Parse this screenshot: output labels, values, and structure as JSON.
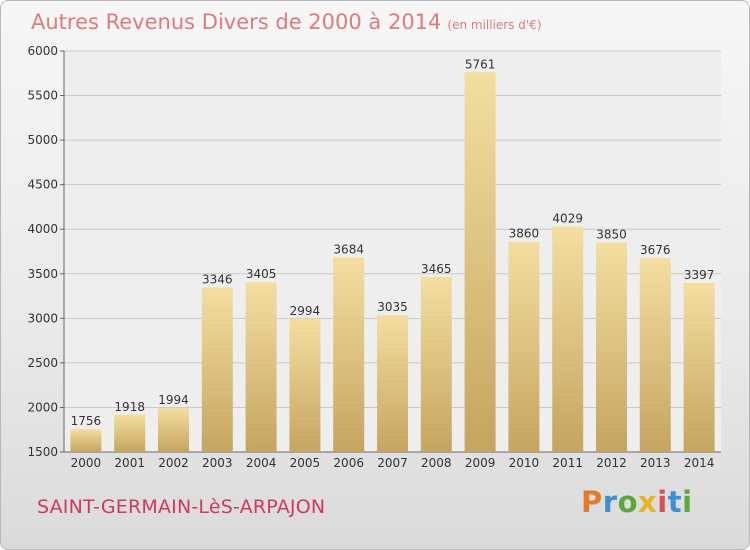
{
  "title": "Autres Revenus Divers de 2000 à 2014",
  "title_unit": "(en milliers d'€)",
  "location": "SAINT-GERMAIN-LèS-ARPAJON",
  "logo_letters": [
    "P",
    "r",
    "o",
    "x",
    "i",
    "t",
    "i"
  ],
  "colors": {
    "title": "#e07b7b",
    "location": "#cf3a5a",
    "bar_light": "#f3dea0",
    "bar_dark": "#c5a55f",
    "grid": "#c9c9c9"
  },
  "chart_data": {
    "type": "bar",
    "categories": [
      "2000",
      "2001",
      "2002",
      "2003",
      "2004",
      "2005",
      "2006",
      "2007",
      "2008",
      "2009",
      "2010",
      "2011",
      "2012",
      "2013",
      "2014"
    ],
    "values": [
      1756,
      1918,
      1994,
      3346,
      3405,
      2994,
      3684,
      3035,
      3465,
      5761,
      3860,
      4029,
      3850,
      3676,
      3397
    ],
    "ylim": [
      1500,
      6000
    ],
    "yticks": [
      1500,
      2000,
      2500,
      3000,
      3500,
      4000,
      4500,
      5000,
      5500,
      6000
    ],
    "grid": true
  }
}
